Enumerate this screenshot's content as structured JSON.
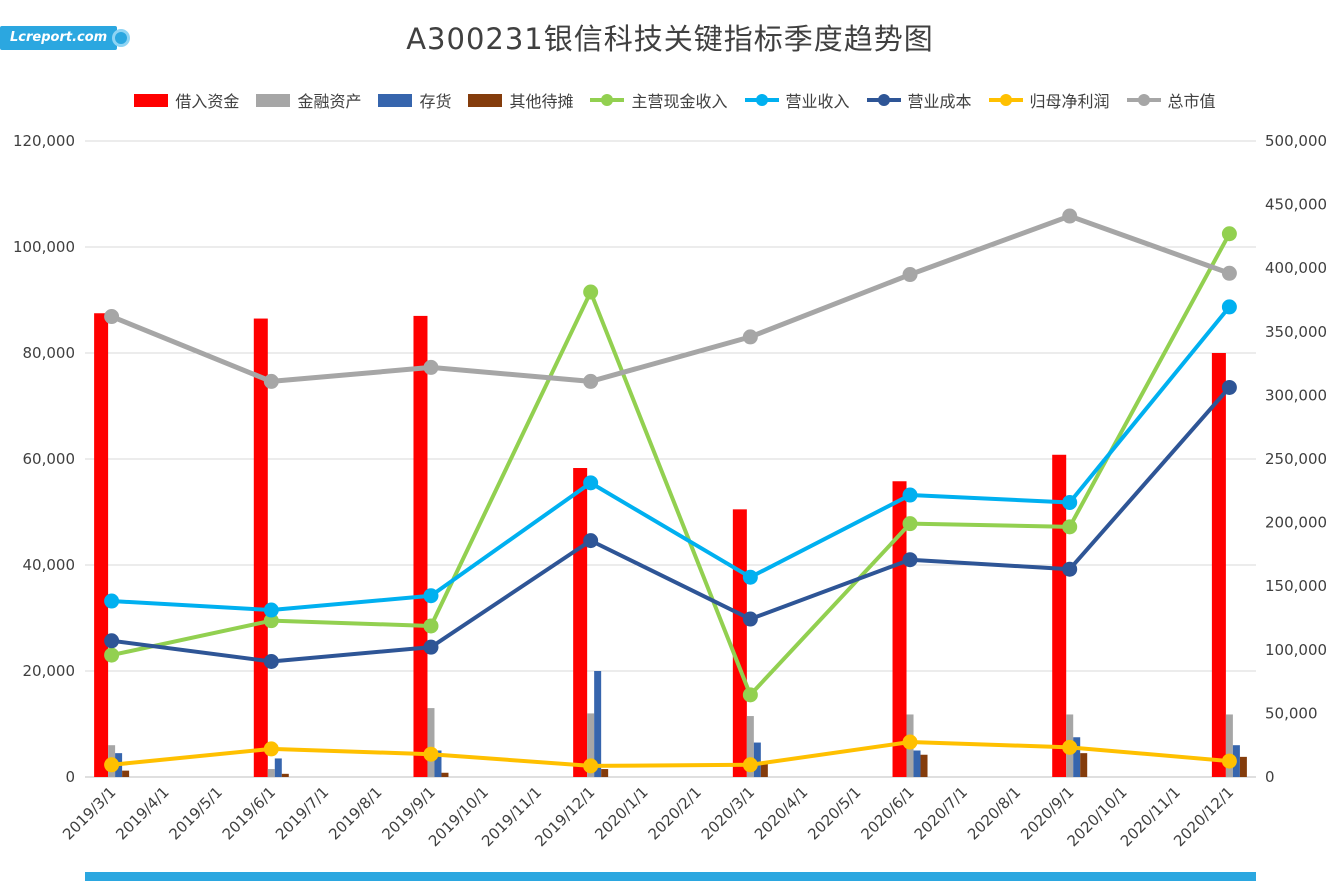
{
  "watermark": {
    "text": "Lcreport.com"
  },
  "colors": {
    "accent_blue": "#2BA7E0",
    "text": "#404040",
    "gridline": "#D9D9D9",
    "axis_line": "#BFBFBF"
  },
  "chart_data": {
    "type": "bar+line",
    "title": "A300231银信科技关键指标季度趋势图",
    "legend_position": "top",
    "grid": true,
    "x_categories": [
      "2019/3/1",
      "2019/4/1",
      "2019/5/1",
      "2019/6/1",
      "2019/7/1",
      "2019/8/1",
      "2019/9/1",
      "2019/10/1",
      "2019/11/1",
      "2019/12/1",
      "2020/1/1",
      "2020/2/1",
      "2020/3/1",
      "2020/4/1",
      "2020/5/1",
      "2020/6/1",
      "2020/7/1",
      "2020/8/1",
      "2020/9/1",
      "2020/10/1",
      "2020/11/1",
      "2020/12/1"
    ],
    "data_point_indices": [
      0,
      3,
      6,
      9,
      12,
      15,
      18,
      21
    ],
    "data_point_labels": [
      "2019/3/1",
      "2019/6/1",
      "2019/9/1",
      "2019/12/1",
      "2020/3/1",
      "2020/6/1",
      "2020/9/1",
      "2020/12/1"
    ],
    "left_axis": {
      "min": 0,
      "max": 120000,
      "step": 20000,
      "ticks": [
        "0",
        "20,000",
        "40,000",
        "60,000",
        "80,000",
        "100,000",
        "120,000"
      ]
    },
    "right_axis": {
      "min": 0,
      "max": 500000,
      "step": 50000,
      "ticks": [
        "0",
        "50,000",
        "100,000",
        "150,000",
        "200,000",
        "250,000",
        "300,000",
        "350,000",
        "400,000",
        "450,000",
        "500,000"
      ]
    },
    "bar_series": [
      {
        "key": "borrowed-funds",
        "name": "借入资金",
        "color": "#FF0000",
        "axis": "left",
        "values": [
          87500,
          86500,
          87000,
          58300,
          50500,
          55800,
          60800,
          80000
        ]
      },
      {
        "key": "financial-assets",
        "name": "金融资产",
        "color": "#A6A6A6",
        "axis": "left",
        "values": [
          6000,
          1500,
          13000,
          12000,
          11500,
          11800,
          11800,
          11800
        ]
      },
      {
        "key": "inventory",
        "name": "存货",
        "color": "#3665AD",
        "axis": "left",
        "values": [
          4500,
          3500,
          5000,
          20000,
          6500,
          5000,
          7500,
          6000
        ]
      },
      {
        "key": "other-deferred",
        "name": "其他待摊",
        "color": "#843C0C",
        "axis": "left",
        "values": [
          1200,
          600,
          800,
          1500,
          2500,
          4200,
          4500,
          3800
        ]
      }
    ],
    "line_series": [
      {
        "key": "main-cash-income",
        "name": "主营现金收入",
        "color": "#92D050",
        "axis": "left",
        "values": [
          23000,
          29500,
          28500,
          91500,
          15500,
          47800,
          47200,
          102500
        ]
      },
      {
        "key": "operating-revenue",
        "name": "营业收入",
        "color": "#00B0F0",
        "axis": "left",
        "values": [
          33200,
          31500,
          34200,
          55500,
          37700,
          53200,
          51800,
          88700
        ]
      },
      {
        "key": "operating-cost",
        "name": "营业成本",
        "color": "#2E5596",
        "axis": "left",
        "values": [
          25700,
          21800,
          24500,
          44600,
          29800,
          41000,
          39200,
          73500
        ]
      },
      {
        "key": "net-profit",
        "name": "归母净利润",
        "color": "#FFC000",
        "axis": "left",
        "values": [
          2300,
          5300,
          4300,
          2100,
          2300,
          6600,
          5600,
          3000
        ]
      },
      {
        "key": "market-cap",
        "name": "总市值",
        "color": "#A6A6A6",
        "axis": "right",
        "values": [
          362000,
          311000,
          322000,
          311000,
          346000,
          395000,
          441000,
          396000
        ]
      }
    ]
  }
}
